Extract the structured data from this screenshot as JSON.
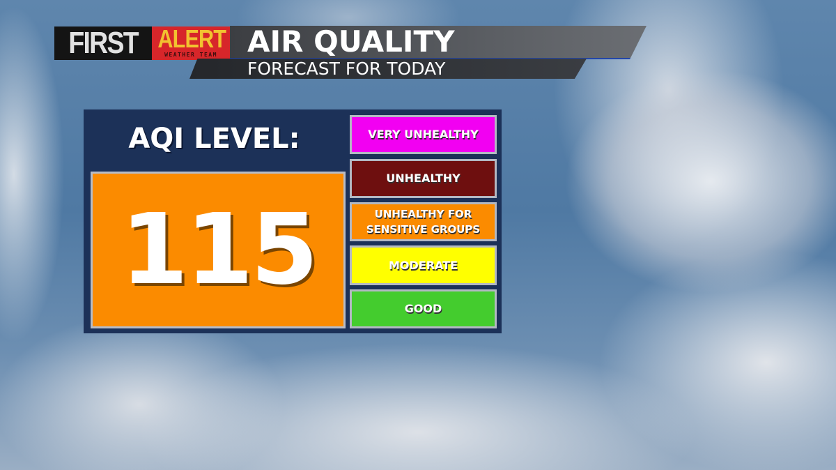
{
  "logo": {
    "first": "FIRST",
    "alert": "ALERT",
    "team": "WEATHER TEAM"
  },
  "header": {
    "title": "AIR QUALITY",
    "subtitle": "FORECAST FOR TODAY"
  },
  "aqi": {
    "label": "AQI LEVEL:",
    "value": "115",
    "value_color": "#fb8b00"
  },
  "categories": [
    {
      "label": "VERY UNHEALTHY",
      "color": "#f200f2"
    },
    {
      "label": "UNHEALTHY",
      "color": "#6e0f0f"
    },
    {
      "label": "UNHEALTHY FOR SENSITIVE GROUPS",
      "color": "#fb8b00"
    },
    {
      "label": "MODERATE",
      "color": "#ffff00"
    },
    {
      "label": "GOOD",
      "color": "#44cc2e"
    }
  ]
}
